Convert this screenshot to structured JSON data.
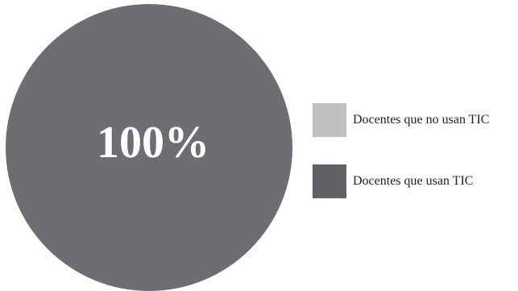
{
  "chart_data": {
    "type": "pie",
    "title": "",
    "series": [
      {
        "name": "Docentes que no usan TIC",
        "value": 0,
        "color": "#bfc0c2"
      },
      {
        "name": "Docentes que usan TIC",
        "value": 100,
        "color": "#6d6e71"
      }
    ],
    "data_labels": [
      "",
      "100%"
    ],
    "legend_position": "right"
  },
  "legend_colors": [
    "#bfc0c2",
    "#606164"
  ]
}
